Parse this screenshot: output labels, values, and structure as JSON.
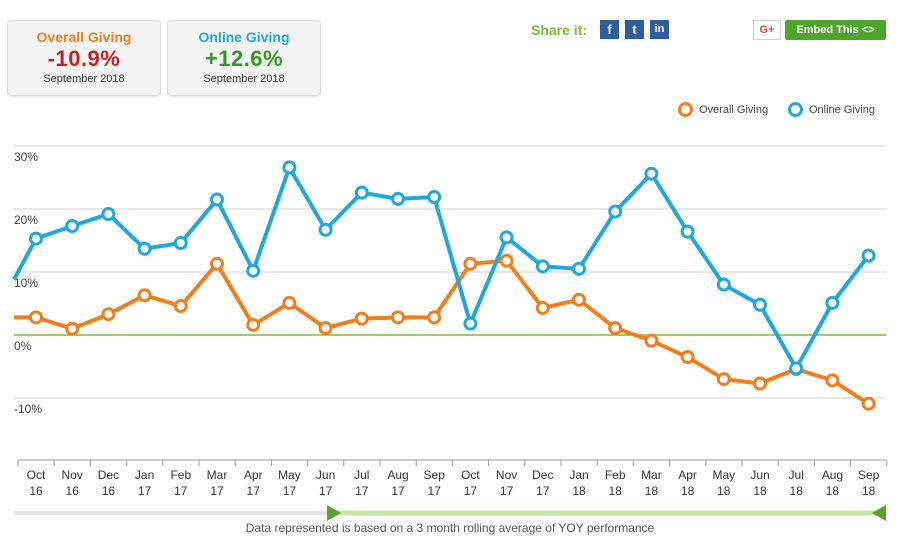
{
  "cards": {
    "overall": {
      "title": "Overall Giving",
      "value": "-10.9%",
      "date": "September 2018",
      "title_color": "#f07f1b",
      "value_color": "#cc1f1f"
    },
    "online": {
      "title": "Online Giving",
      "value": "+12.6%",
      "date": "September 2018",
      "title_color": "#1fa8dd",
      "value_color": "#2e9a21"
    }
  },
  "share": {
    "label": "Share it:",
    "facebook_glyph": "f",
    "twitter_glyph": "t",
    "linkedin_glyph": "in",
    "googleplus_glyph": "G+",
    "embed_label": "Embed This <>"
  },
  "footnote": "Data represented is based on a 3 month rolling average of YOY performance",
  "chart_data": {
    "type": "line",
    "x": [
      [
        "Oct",
        "16"
      ],
      [
        "Nov",
        "16"
      ],
      [
        "Dec",
        "16"
      ],
      [
        "Jan",
        "17"
      ],
      [
        "Feb",
        "17"
      ],
      [
        "Mar",
        "17"
      ],
      [
        "Apr",
        "17"
      ],
      [
        "May",
        "17"
      ],
      [
        "Jun",
        "17"
      ],
      [
        "Jul",
        "17"
      ],
      [
        "Aug",
        "17"
      ],
      [
        "Sep",
        "17"
      ],
      [
        "Oct",
        "17"
      ],
      [
        "Nov",
        "17"
      ],
      [
        "Dec",
        "17"
      ],
      [
        "Jan",
        "18"
      ],
      [
        "Feb",
        "18"
      ],
      [
        "Mar",
        "18"
      ],
      [
        "Apr",
        "18"
      ],
      [
        "May",
        "18"
      ],
      [
        "Jun",
        "18"
      ],
      [
        "Jul",
        "18"
      ],
      [
        "Aug",
        "18"
      ],
      [
        "Sep",
        "18"
      ]
    ],
    "ylim": [
      -20,
      30
    ],
    "yticks": [
      -10,
      0,
      10,
      20,
      30
    ],
    "ytick_labels": [
      "-10%",
      "0%",
      "10%",
      "20%",
      "30%"
    ],
    "zero_line_color": "#7dbb36",
    "legend": "top-right",
    "series": [
      {
        "name": "Overall Giving",
        "color": "#f07f1b",
        "values": [
          2.8,
          1.0,
          3.3,
          6.3,
          4.6,
          11.3,
          1.6,
          5.1,
          1.1,
          2.6,
          2.8,
          2.8,
          11.3,
          11.8,
          4.3,
          5.6,
          1.1,
          -0.9,
          -3.5,
          -7.0,
          -7.7,
          -5.4,
          -7.2,
          -10.9
        ]
      },
      {
        "name": "Online Giving",
        "color": "#1fa8dd",
        "values": [
          15.3,
          17.3,
          19.2,
          13.7,
          14.6,
          21.5,
          10.2,
          26.6,
          16.7,
          22.6,
          21.6,
          21.9,
          1.8,
          15.5,
          10.9,
          10.5,
          19.6,
          25.6,
          16.4,
          8.0,
          4.8,
          -5.3,
          5.1,
          12.6
        ]
      }
    ]
  }
}
